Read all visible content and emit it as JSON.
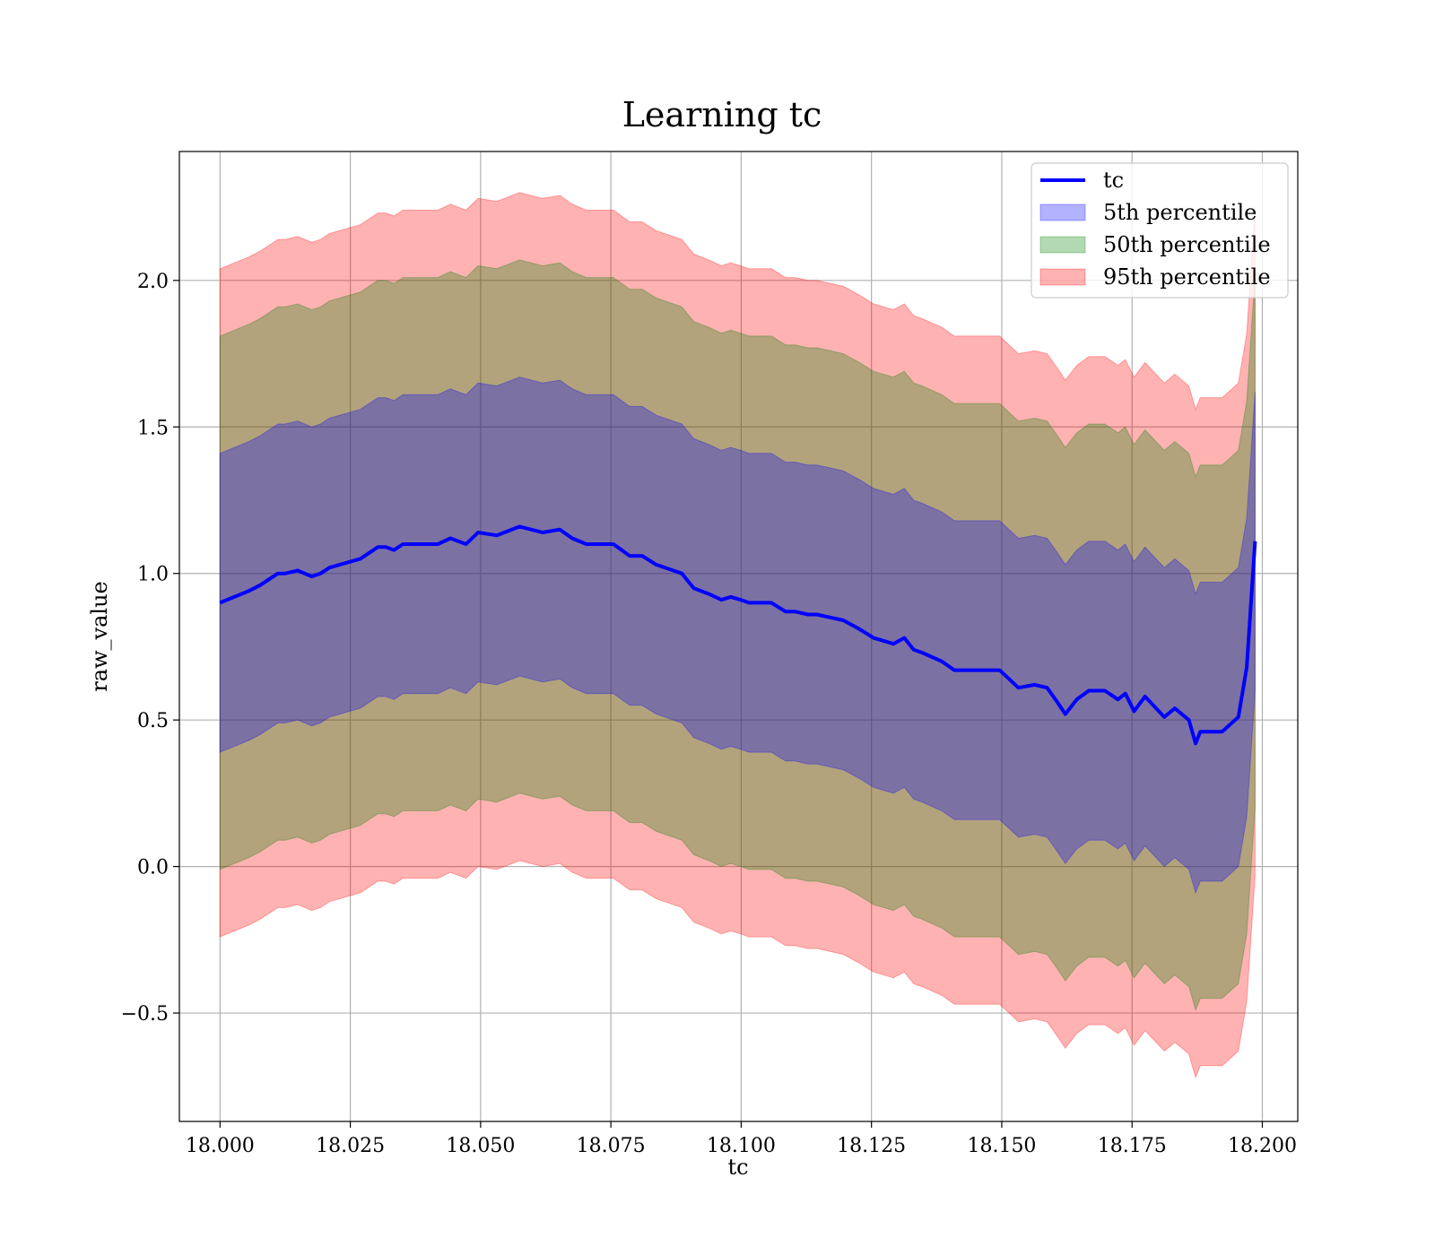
{
  "chart_data": {
    "type": "area",
    "title": "Learning tc",
    "xlabel": "tc",
    "ylabel": "raw_value",
    "xlim": [
      17.9922,
      18.2068
    ],
    "ylim": [
      -0.87,
      2.44
    ],
    "xticks": [
      18.0,
      18.025,
      18.05,
      18.075,
      18.1,
      18.125,
      18.15,
      18.175,
      18.2
    ],
    "xtick_labels": [
      "18.000",
      "18.025",
      "18.050",
      "18.075",
      "18.100",
      "18.125",
      "18.150",
      "18.175",
      "18.200"
    ],
    "yticks": [
      -0.5,
      0.0,
      0.5,
      1.0,
      1.5,
      2.0
    ],
    "ytick_labels": [
      "−0.5",
      "0.0",
      "0.5",
      "1.0",
      "1.5",
      "2.0"
    ],
    "grid": true,
    "legend_position": "top-right",
    "series": [
      {
        "name": "tc",
        "kind": "line",
        "color": "#0000ff",
        "x": [
          18.0,
          18.0055,
          18.0077,
          18.0111,
          18.0125,
          18.0149,
          18.0176,
          18.0193,
          18.021,
          18.0269,
          18.0303,
          18.0318,
          18.0334,
          18.0351,
          18.0368,
          18.0418,
          18.0442,
          18.0472,
          18.0495,
          18.0531,
          18.0575,
          18.0619,
          18.0652,
          18.0676,
          18.0703,
          18.0723,
          18.0755,
          18.0786,
          18.081,
          18.0837,
          18.0886,
          18.0909,
          18.0938,
          18.0962,
          18.098,
          18.0999,
          18.1015,
          18.1058,
          18.1085,
          18.1103,
          18.1128,
          18.1145,
          18.1171,
          18.1196,
          18.1227,
          18.1254,
          18.1292,
          18.1313,
          18.1331,
          18.1347,
          18.1385,
          18.1409,
          18.1442,
          18.1461,
          18.1496,
          18.1532,
          18.1563,
          18.1587,
          18.1607,
          18.1622,
          18.1644,
          18.1667,
          18.1698,
          18.1723,
          18.1737,
          18.1754,
          18.1775,
          18.1812,
          18.1832,
          18.1859,
          18.1872,
          18.1881,
          18.1892,
          18.1923,
          18.1954,
          18.197,
          18.1986
        ],
        "y": [
          0.9,
          0.94,
          0.96,
          1.0,
          1.0,
          1.01,
          0.99,
          1.0,
          1.02,
          1.05,
          1.09,
          1.09,
          1.08,
          1.1,
          1.1,
          1.1,
          1.12,
          1.1,
          1.14,
          1.13,
          1.16,
          1.14,
          1.15,
          1.12,
          1.1,
          1.1,
          1.1,
          1.06,
          1.06,
          1.03,
          1.0,
          0.95,
          0.93,
          0.91,
          0.92,
          0.91,
          0.9,
          0.9,
          0.87,
          0.87,
          0.86,
          0.86,
          0.85,
          0.84,
          0.81,
          0.78,
          0.76,
          0.78,
          0.74,
          0.73,
          0.7,
          0.67,
          0.67,
          0.67,
          0.67,
          0.61,
          0.62,
          0.61,
          0.56,
          0.52,
          0.57,
          0.6,
          0.6,
          0.57,
          0.59,
          0.53,
          0.58,
          0.51,
          0.54,
          0.5,
          0.42,
          0.46,
          0.46,
          0.46,
          0.51,
          0.68,
          1.11
        ]
      },
      {
        "name": "5th percentile",
        "kind": "band",
        "color": "#0000ff",
        "opacity": 0.3,
        "offset": 0.51
      },
      {
        "name": "50th percentile",
        "kind": "band",
        "color": "#008000",
        "opacity": 0.3,
        "offset": 0.91
      },
      {
        "name": "95th percentile",
        "kind": "band",
        "color": "#ff0000",
        "opacity": 0.3,
        "offset": 1.14
      }
    ]
  }
}
